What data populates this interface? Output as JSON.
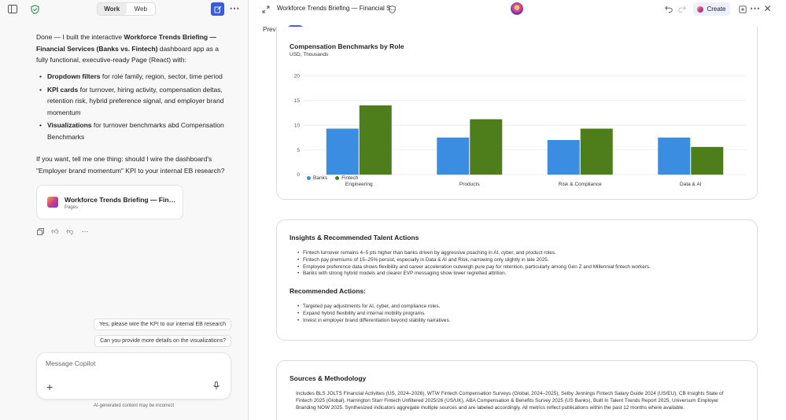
{
  "left_pane": {
    "tabs": [
      {
        "label": "Work",
        "active": true
      },
      {
        "label": "Web",
        "active": false
      }
    ],
    "message": {
      "intro_before": "Done — I built the interactive ",
      "intro_bold": "Workforce Trends Briefing — Financial Services (Banks vs. Fintech)",
      "intro_after": " dashboard app as a fully functional, executive-ready Page (React) with:",
      "bullets": [
        {
          "bold": "Dropdown filters",
          "text": " for role family, region, sector, time period"
        },
        {
          "bold": "KPI cards",
          "text": " for turnover, hiring activity, compensation deltas, retention risk, hybrid preference signal, and employer brand momentum"
        },
        {
          "bold": "Visualizations",
          "text": " for turnover benchmarks abd Compensation Benchmarks"
        }
      ],
      "followup": "If you want, tell me one thing: should I wire the dashboard's \"Employer brand momentum\" KPI to your internal EB research?"
    },
    "page_card": {
      "title": "Workforce Trends Briefing — Finan...",
      "subtitle": "Pages"
    },
    "suggestions": [
      "Yes, please wire the KPI to our internal EB research",
      "Can you provide more details on the visualizations?"
    ],
    "composer": {
      "placeholder": "Message Copilot"
    },
    "disclaimer": "AI-generated content may be incorrect"
  },
  "canvas": {
    "doc_title": "Workforce Trends Briefing — Financial S...",
    "create_label": "Create",
    "preview_label": "Preview",
    "preview_on": true,
    "chart": {
      "title": "Compensation Benchmarks by Role",
      "subtitle": "USD, Thousands"
    },
    "insights": {
      "title": "Insights & Recommended Talent Actions",
      "items": [
        "Fintech turnover remains 4–5 pts higher than banks driven by aggressive poaching in AI, cyber, and product roles.",
        "Fintech pay premiums of 15–25% persist, especially in Data & AI and Risk, narrowing only slightly in late 2025.",
        "Employee preference data shows flexibility and career acceleration outweigh pure pay for retention, particularly among Gen Z and Millennial fintech workers.",
        "Banks with strong hybrid models and clearer EVP messaging show lower regretted attrition."
      ],
      "actions_title": "Recommended Actions:",
      "actions": [
        "Targeted pay adjustments for AI, cyber, and compliance roles.",
        "Expand hybrid flexibility and internal mobility programs.",
        "Invest in employer brand differentiation beyond stability narratives."
      ]
    },
    "sources": {
      "title": "Sources & Methodology",
      "text": "Includes BLS JOLTS Financial Activities (US, 2024–2026), WTW Fintech Compensation Surveys (Global, 2024–2025), Selby Jennings Fintech Salary Guide 2024 (US/EU), CB Insights State of Fintech 2025 (Global), Harrington Starr Fintech Unfiltered 2025/26 (US/UK), ABA Compensation & Benefits Survey 2025 (US Banks), Built In Talent Trends Report 2025, Universum Employer Branding NOW 2025. Synthesized indicators aggregate multiple sources and are labeled accordingly. All metrics reflect publications within the past 12 months where available."
    }
  },
  "colors": {
    "banks": "#3a8de0",
    "fintech": "#4e7d1c",
    "accent": "#4464d8"
  },
  "chart_data": {
    "type": "bar",
    "title": "Compensation Benchmarks by Role",
    "subtitle": "USD, Thousands",
    "categories": [
      "Engineering",
      "Products",
      "Risk & Compliance",
      "Data & AI"
    ],
    "series": [
      {
        "name": "Banks",
        "values": [
          9.3,
          7.5,
          7,
          7.5
        ]
      },
      {
        "name": "Fintech",
        "values": [
          14,
          11.2,
          9.3,
          5.6
        ]
      }
    ],
    "yticks": [
      0,
      5,
      10,
      15,
      20
    ],
    "ylim": [
      0,
      21
    ],
    "grid": true,
    "legend_position": "bottom-left"
  }
}
